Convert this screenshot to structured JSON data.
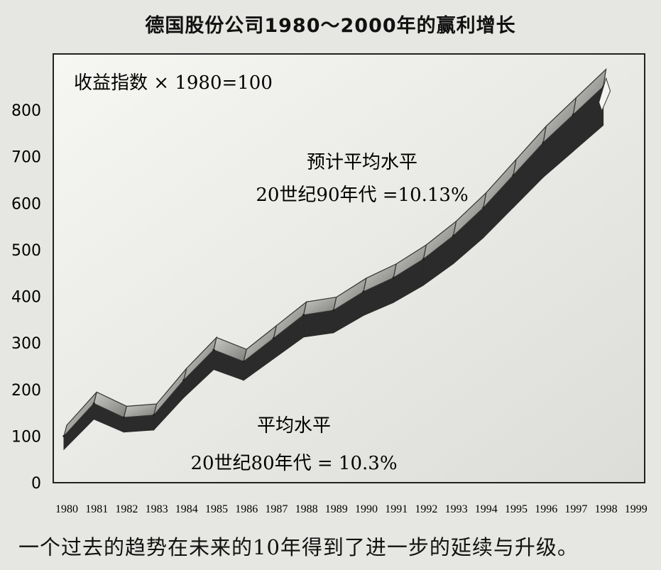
{
  "chart_data": {
    "type": "area",
    "title": "德国股份公司1980～2000年的赢利增长",
    "ylabel": "收益指数 × 1980=100",
    "xlabel": "",
    "ylim": [
      0,
      800
    ],
    "yticks": [
      0,
      100,
      200,
      300,
      400,
      500,
      600,
      700,
      800
    ],
    "categories": [
      "1980",
      "1981",
      "1982",
      "1983",
      "1984",
      "1985",
      "1986",
      "1987",
      "1988",
      "1989",
      "1990",
      "1991",
      "1992",
      "1993",
      "1994",
      "1995",
      "1996",
      "1997",
      "1998",
      "1999"
    ],
    "series": [
      {
        "values": [
          100,
          170,
          140,
          145,
          220,
          285,
          260,
          310,
          360,
          370,
          410,
          440,
          480,
          530,
          590,
          660,
          730,
          790,
          850,
          null
        ]
      }
    ],
    "annotations": [
      {
        "line1": "预计平均水平",
        "line2": "20世纪90年代 =10.13%"
      },
      {
        "line1": "平均水平",
        "line2": "20世纪80年代 = 10.3%"
      }
    ],
    "grid": false,
    "legend": "none"
  },
  "caption": "一个过去的趋势在未来的10年得到了进一步的延续与升级。",
  "colors": {
    "background": "#e6e6e2",
    "plot_fill": "#f3f3f0",
    "ribbon_top": "#9a9a96",
    "ribbon_side": "#2b2b2b",
    "text": "#111111"
  }
}
